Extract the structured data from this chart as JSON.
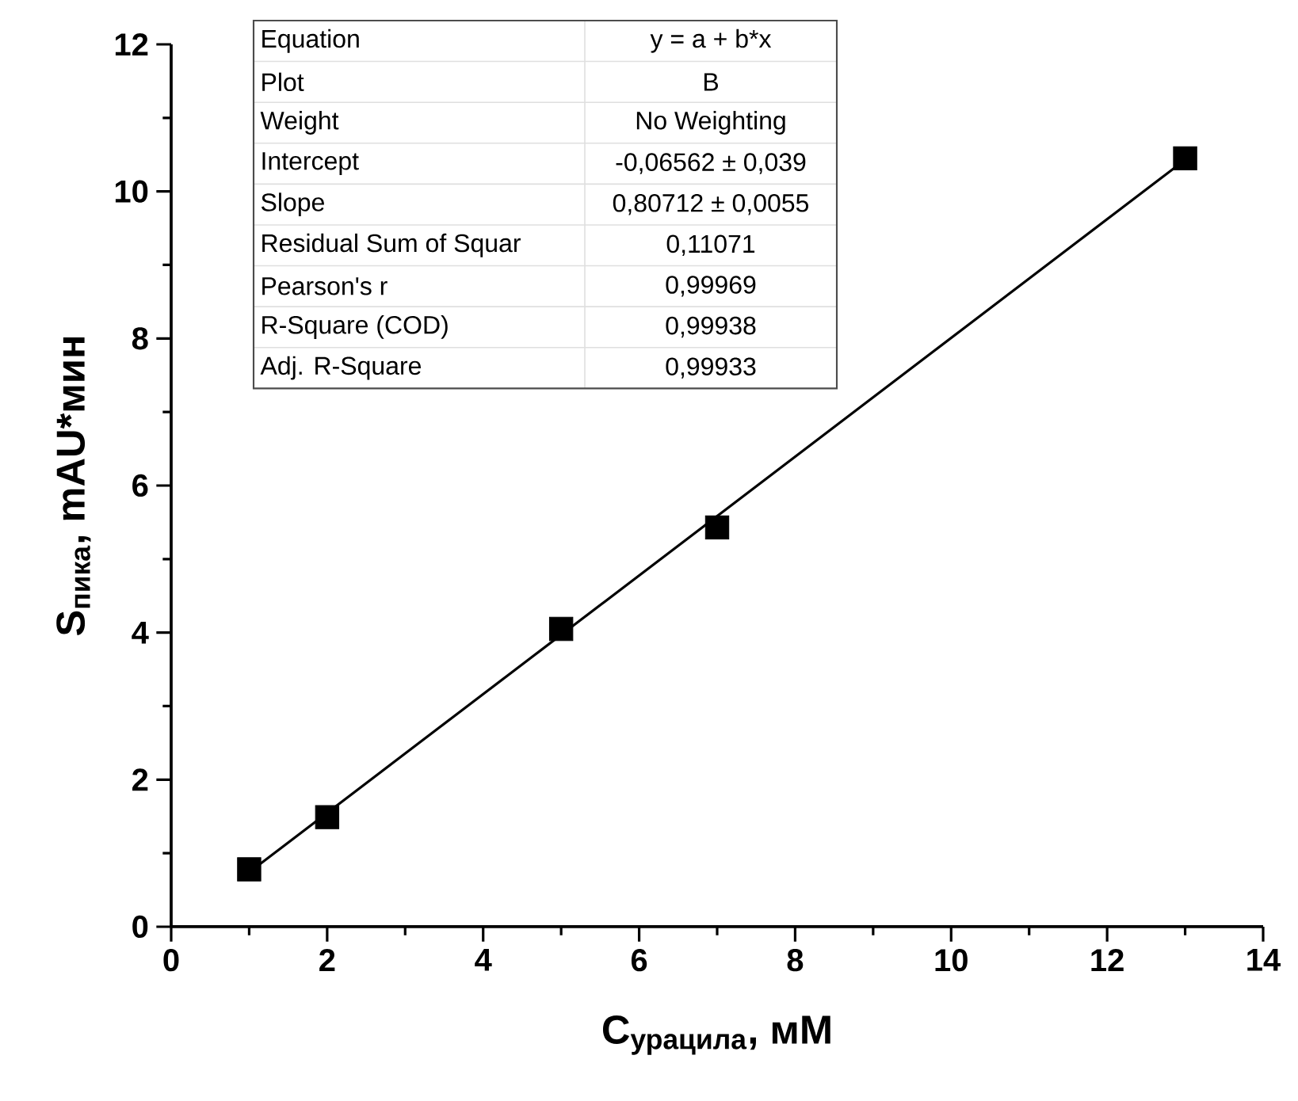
{
  "chart_data": {
    "type": "scatter",
    "xlabel": "С$_{урацила}$, мМ",
    "ylabel": "S$_{пика}$, mAU*мин",
    "xlim": [
      0,
      14
    ],
    "ylim": [
      0,
      12
    ],
    "xticks": [
      0,
      2,
      4,
      6,
      8,
      10,
      12,
      14
    ],
    "yticks": [
      0,
      2,
      4,
      6,
      8,
      10,
      12
    ],
    "grid": false,
    "series": [
      {
        "marker": "square",
        "color": "#000000",
        "x": [
          1,
          2,
          5,
          7,
          13
        ],
        "values": [
          0.78,
          1.49,
          4.05,
          5.43,
          10.45
        ]
      },
      {
        "type": "line",
        "color": "#000000",
        "x": [
          1,
          13
        ],
        "values": [
          0.74,
          10.43
        ]
      }
    ],
    "annotations": [
      "Equation",
      "y = a + b*x",
      "Plot",
      "B",
      "Weight",
      "No Weighting",
      "Intercept",
      "-0,06562 ± 0,039",
      "Slope",
      "0,80712 ± 0,0055",
      "Residual Sum of Squar",
      "0,11071",
      "Pearson's r",
      "0,99969",
      "R-Square (COD)",
      "0,99938",
      "Adj. R-Square",
      "0,99933"
    ]
  }
}
